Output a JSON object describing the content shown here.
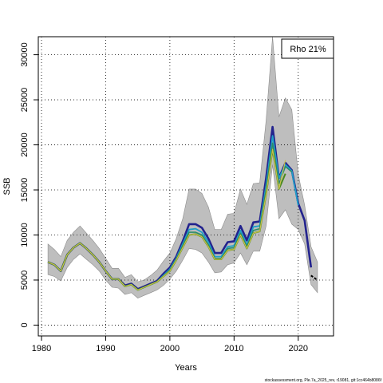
{
  "chart_data": {
    "type": "line",
    "xlabel": "Years",
    "ylabel": "SSB",
    "xlim": [
      1979.5,
      2025.5
    ],
    "ylim": [
      -1200,
      32000
    ],
    "x_ticks": [
      1980,
      1990,
      2000,
      2010,
      2020
    ],
    "y_ticks": [
      0,
      5000,
      10000,
      15000,
      20000,
      25000,
      30000
    ],
    "grid": true,
    "legend": {
      "text": "Rho 21%",
      "position": "top-right"
    },
    "footer": "stockassessment.org, Ple.7a_2025_rev, r19081, git:1cc464b8086f",
    "colors": {
      "band": "#bebebe",
      "band_edge": "#8c8c8c",
      "grid": "#000000"
    },
    "confidence_band": {
      "x": [
        1981,
        1982,
        1983,
        1984,
        1985,
        1986,
        1987,
        1988,
        1989,
        1990,
        1991,
        1992,
        1993,
        1994,
        1995,
        1996,
        1997,
        1998,
        1999,
        2000,
        2001,
        2002,
        2003,
        2004,
        2005,
        2006,
        2007,
        2008,
        2009,
        2010,
        2011,
        2012,
        2013,
        2014,
        2015,
        2016,
        2017,
        2018,
        2019,
        2020,
        2021,
        2022,
        2023
      ],
      "upper": [
        9000,
        8400,
        7600,
        9400,
        10300,
        11000,
        10200,
        9400,
        8500,
        7400,
        6300,
        6300,
        5300,
        5600,
        4800,
        5000,
        5500,
        6100,
        7100,
        8000,
        9600,
        11800,
        15100,
        15100,
        14600,
        13100,
        10600,
        10600,
        12300,
        12400,
        15100,
        13400,
        15700,
        15800,
        22700,
        32000,
        23100,
        25200,
        23900,
        16700,
        13300,
        8700,
        7000
      ],
      "lower": [
        5600,
        5400,
        4900,
        6400,
        7300,
        7900,
        7300,
        6700,
        6000,
        5000,
        4200,
        4100,
        3400,
        3600,
        3000,
        3300,
        3600,
        3900,
        4400,
        5100,
        6000,
        7200,
        8500,
        8400,
        8000,
        7000,
        5800,
        5900,
        6700,
        6900,
        8000,
        6700,
        8200,
        8200,
        11000,
        17800,
        11800,
        12800,
        11200,
        10600,
        9000,
        4500,
        3600
      ]
    },
    "series": [
      {
        "color": "#23238e",
        "width": 2.6,
        "x": [
          1981,
          1982,
          1983,
          1984,
          1985,
          1986,
          1987,
          1988,
          1989,
          1990,
          1991,
          1992,
          1993,
          1994,
          1995,
          1996,
          1997,
          1998,
          1999,
          2000,
          2001,
          2002,
          2003,
          2004,
          2005,
          2006,
          2007,
          2008,
          2009,
          2010,
          2011,
          2012,
          2013,
          2014,
          2015,
          2016,
          2017,
          2018,
          2019,
          2020,
          2021,
          2022
        ],
        "values": [
          7000,
          6700,
          6000,
          7800,
          8600,
          9100,
          8500,
          7800,
          7000,
          6000,
          5100,
          5100,
          4400,
          4600,
          4000,
          4300,
          4600,
          4900,
          5700,
          6400,
          7600,
          9300,
          11200,
          11200,
          10800,
          9600,
          8000,
          8000,
          9200,
          9300,
          11000,
          9400,
          11400,
          11500,
          16300,
          22000,
          16300,
          18000,
          17200,
          13500,
          11600,
          6400
        ]
      },
      {
        "color": "#1f9fc8",
        "width": 1.8,
        "x": [
          1981,
          1982,
          1983,
          1984,
          1985,
          1986,
          1987,
          1988,
          1989,
          1990,
          1991,
          1992,
          1993,
          1994,
          1995,
          1996,
          1997,
          1998,
          1999,
          2000,
          2001,
          2002,
          2003,
          2004,
          2005,
          2006,
          2007,
          2008,
          2009,
          2010,
          2011,
          2012,
          2013,
          2014,
          2015,
          2016,
          2017,
          2018,
          2019,
          2020
        ],
        "values": [
          7000,
          6700,
          6000,
          7800,
          8600,
          9100,
          8500,
          7800,
          7000,
          6000,
          5100,
          5100,
          4300,
          4500,
          3900,
          4200,
          4500,
          4800,
          5500,
          6200,
          7400,
          9000,
          10600,
          10700,
          10300,
          9200,
          7600,
          7600,
          8700,
          8800,
          10500,
          8900,
          10900,
          11000,
          15500,
          21000,
          16300,
          17800,
          17100,
          13300
        ]
      },
      {
        "color": "#2d8c6a",
        "width": 1.6,
        "x": [
          1981,
          1982,
          1983,
          1984,
          1985,
          1986,
          1987,
          1988,
          1989,
          1990,
          1991,
          1992,
          1993,
          1994,
          1995,
          1996,
          1997,
          1998,
          1999,
          2000,
          2001,
          2002,
          2003,
          2004,
          2005,
          2006,
          2007,
          2008,
          2009,
          2010,
          2011,
          2012,
          2013,
          2014,
          2015,
          2016,
          2017,
          2018,
          2019
        ],
        "values": [
          7000,
          6700,
          6000,
          7800,
          8600,
          9100,
          8500,
          7800,
          7000,
          6000,
          5100,
          5100,
          4300,
          4500,
          3900,
          4200,
          4500,
          4800,
          5400,
          6100,
          7300,
          8800,
          10300,
          10300,
          10000,
          8900,
          7400,
          7400,
          8500,
          8600,
          10200,
          8700,
          10500,
          10700,
          15000,
          20200,
          15700,
          17600,
          17000
        ]
      },
      {
        "color": "#4a8a1e",
        "width": 2.0,
        "x": [
          1981,
          1982,
          1983,
          1984,
          1985,
          1986,
          1987,
          1988,
          1989,
          1990,
          1991,
          1992,
          1993,
          1994,
          1995,
          1996,
          1997,
          1998,
          1999,
          2000,
          2001,
          2002,
          2003,
          2004,
          2005,
          2006,
          2007,
          2008,
          2009,
          2010,
          2011,
          2012,
          2013,
          2014,
          2015,
          2016,
          2017,
          2018
        ],
        "values": [
          7000,
          6700,
          6000,
          7800,
          8600,
          9100,
          8500,
          7800,
          7000,
          6000,
          5100,
          5100,
          4300,
          4500,
          3900,
          4200,
          4500,
          4800,
          5400,
          6000,
          7200,
          8600,
          10000,
          10100,
          9800,
          8700,
          7300,
          7300,
          8300,
          8400,
          10000,
          8500,
          10200,
          10400,
          14500,
          19500,
          15100,
          16800
        ]
      },
      {
        "color": "#c9c14a",
        "width": 1.2,
        "x": [
          1981,
          1982,
          1983,
          1984,
          1985,
          1986,
          1987,
          1988,
          1989,
          1990,
          1991,
          1992,
          1993,
          1994,
          1995,
          1996,
          1997,
          1998,
          1999,
          2000,
          2001,
          2002,
          2003,
          2004,
          2005,
          2006,
          2007,
          2008,
          2009,
          2010,
          2011,
          2012,
          2013,
          2014,
          2015,
          2016,
          2017,
          2018
        ],
        "values": [
          7000,
          6700,
          6000,
          7800,
          8600,
          9100,
          8500,
          7800,
          7000,
          6000,
          5100,
          5100,
          4300,
          4500,
          3900,
          4200,
          4500,
          4800,
          5400,
          6000,
          7200,
          8600,
          10000,
          10100,
          9800,
          8700,
          7300,
          7300,
          8300,
          8400,
          10000,
          8500,
          10200,
          10400,
          14500,
          19500,
          15100,
          18300
        ]
      },
      {
        "color": "#000000",
        "width": 2.0,
        "dash": "3,2",
        "x": [
          2022,
          2023
        ],
        "values": [
          5500,
          5000
        ]
      }
    ]
  }
}
